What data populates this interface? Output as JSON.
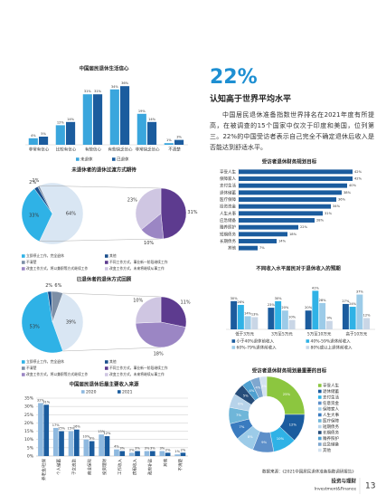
{
  "chart_data": [
    {
      "type": "bar",
      "title": "中国居民退休生活信心",
      "categories": [
        "非常有信心",
        "比较有信心",
        "有些信心",
        "有些缺乏信心",
        "非常缺乏信心",
        "不清楚"
      ],
      "series": [
        {
          "name": "未退休",
          "color": "#3aa6dd",
          "values": [
            4,
            12,
            31,
            34,
            19,
            1
          ],
          "value_labels": [
            "4%",
            "12%",
            "31%",
            "34%",
            "19%",
            "1%"
          ]
        },
        {
          "name": "已退休",
          "color": "#1b5c9e",
          "values": [
            5,
            14,
            31,
            36,
            14,
            3
          ],
          "value_labels": [
            "5%",
            "14%",
            "31%",
            "36%",
            "14%",
            "3%"
          ]
        }
      ],
      "ylim": [
        0,
        40
      ],
      "legend": "bottom"
    },
    {
      "type": "pie-of-pie",
      "title": "未退休者的退休过渡方式期待",
      "categories": [
        "立即停止工作，完全退休",
        "其他",
        "不清楚",
        null
      ],
      "values": [
        33,
        2,
        1,
        64
      ],
      "value_labels": [
        "33%",
        "2%",
        "1%",
        "64%"
      ],
      "colors": [
        "#2fb2e6",
        "#1b4f8c",
        "#7d8fa6",
        "#d9e6f3"
      ],
      "breakdown": {
        "categories": [
          "不同工作方式，事业新一阶段继续工作",
          "改变工作方式，将以兼职等方式继续工作",
          "改变工作方式，未来将继续从事工作"
        ],
        "values": [
          31,
          10,
          23
        ],
        "value_labels": [
          "31%",
          "10%",
          "23%"
        ],
        "colors": [
          "#5d3b8f",
          "#9b86c4",
          "#cfc6e2"
        ]
      },
      "legend": "bottom"
    },
    {
      "type": "pie-of-pie",
      "title": "已退休者的退休方式回顾",
      "categories": [
        "立即停止工作，完全退休",
        "其他",
        "不清楚",
        null
      ],
      "values": [
        53,
        2,
        6,
        39
      ],
      "value_labels": [
        "53%",
        "2%",
        "6%",
        "39%"
      ],
      "colors": [
        "#2fb2e6",
        "#1b4f8c",
        "#7d8fa6",
        "#d9e6f3"
      ],
      "breakdown": {
        "categories": [
          "不同工作方式，事业新一阶段继续工作",
          "改变工作方式，将以兼职等方式继续工作",
          "改变工作方式，未来将继续从事工作"
        ],
        "values": [
          11,
          18,
          10
        ],
        "value_labels": [
          "11%",
          "18%",
          "10%"
        ],
        "colors": [
          "#5d3b8f",
          "#9b86c4",
          "#cfc6e2"
        ]
      },
      "legend": "bottom"
    },
    {
      "type": "bar",
      "title": "中国居民退休后最主要收入来源",
      "categories": [
        "养老金/社保",
        "个人储蓄",
        "子女资助",
        "商业保险",
        "投资理财",
        "工作收入",
        "房租收入",
        "政府补贴",
        "其他",
        "不清楚"
      ],
      "series": [
        {
          "name": "2020",
          "color": "#8fb9df",
          "values": [
            32,
            17,
            15,
            10,
            13,
            4,
            2,
            3,
            3,
            1
          ],
          "value_labels": [
            "32%",
            "17%",
            "15%",
            "10%",
            "13%",
            "4%",
            "2%",
            "3%",
            "3%",
            "1%"
          ]
        },
        {
          "name": "2021",
          "color": "#1b5c9e",
          "values": [
            31,
            15,
            16,
            9,
            12,
            3,
            3,
            3,
            2,
            2
          ],
          "value_labels": [
            "31%",
            "15%",
            "16%",
            "9%",
            "12%",
            "3%",
            "3%",
            "3%",
            "2%",
            "2%"
          ]
        }
      ],
      "ylim": [
        0,
        35
      ],
      "yticks": [
        {
          "value": 0,
          "label": "0%"
        },
        {
          "value": 5,
          "label": "5%"
        },
        {
          "value": 10,
          "label": "10%"
        },
        {
          "value": 15,
          "label": "15%"
        },
        {
          "value": 20,
          "label": "20%"
        },
        {
          "value": 25,
          "label": "25%"
        },
        {
          "value": 30,
          "label": "30%"
        },
        {
          "value": 35,
          "label": "35%"
        }
      ],
      "grid": true,
      "legend": "top"
    },
    {
      "type": "hbar",
      "title": "受访者退休财务规划目标",
      "categories": [
        "享受人生",
        "保障家人",
        "支付生活",
        "退休储蓄",
        "医疗保障",
        "投资资金",
        "人生大事",
        "应急储备",
        "赡养照护",
        "短期债务",
        "长期债务",
        "其他"
      ],
      "values": [
        42,
        42,
        40,
        38,
        36,
        34,
        31,
        28,
        22,
        18,
        14,
        7
      ],
      "value_labels": [
        "42%",
        "42%",
        "40%",
        "38%",
        "36%",
        "34%",
        "31%",
        "28%",
        "22%",
        "18%",
        "14%",
        "7%"
      ],
      "color": "#1b5c9e",
      "xlim": [
        0,
        50
      ]
    },
    {
      "type": "bar",
      "title": "不同收入水平居民对于退休收入的预期",
      "categories": [
        "低于3万元",
        "3万至5万元",
        "5万至10万元",
        "高于10万元"
      ],
      "series": [
        {
          "name": "小于40%退休前收入",
          "color": "#1b5c9e",
          "values": [
            30,
            23,
            20,
            27
          ],
          "value_labels": [
            "30%",
            "23%",
            "20%",
            "27%"
          ]
        },
        {
          "name": "40%-59%退休前收入",
          "color": "#2fb2e6",
          "values": [
            26,
            30,
            41,
            24
          ],
          "value_labels": [
            "26%",
            "30%",
            "41%",
            "24%"
          ]
        },
        {
          "name": "60%-79%退休前收入",
          "color": "#9ccbe8",
          "values": [
            14,
            20,
            28,
            37
          ],
          "value_labels": [
            "14%",
            "20%",
            "28%",
            "37%"
          ]
        },
        {
          "name": "80%或以上退休前收入",
          "color": "#c9d6e6",
          "values": [
            13,
            10,
            9,
            12
          ],
          "value_labels": [
            "13%",
            "10%",
            "9%",
            "12%"
          ]
        }
      ],
      "ylim": [
        0,
        50
      ],
      "legend": "bottom"
    },
    {
      "type": "donut",
      "title": "受访者退休财务规划最重要的目标",
      "categories": [
        "享受人生",
        "退休储蓄",
        "支付生活",
        "任意资金",
        "保障家人",
        "人生大事",
        "医疗保障",
        "短期债务",
        "长期债务",
        "赡养照护",
        "应急储备",
        "其他"
      ],
      "values": [
        25,
        12,
        10,
        9,
        8,
        7,
        7,
        6,
        5,
        4,
        4,
        3
      ],
      "value_labels": [
        "25%",
        "12%",
        "10%",
        "9%",
        "8%",
        "7%",
        "7%",
        "6%",
        "5%",
        "4%",
        "4%",
        "3%"
      ],
      "colors": [
        "#8cc63f",
        "#1b5c9e",
        "#2fb2e6",
        "#5d8fc9",
        "#9ccbe8",
        "#3a7bbf",
        "#6fb6d9",
        "#b7d3ea",
        "#264d7a",
        "#4fa0d0",
        "#7fa7cf",
        "#d3e2f0"
      ],
      "legend": "right"
    }
  ],
  "article": {
    "stat": "22%",
    "heading": "认知高于世界平均水平",
    "body": "中国居民退休准备指数世界排名在2021年度有所提高，在被调查的15个国家中仅次于印度和美国，位列第三。22%的中国受访者表示自己完全不确定退休后收入是否能达到舒适水平。"
  },
  "footer": {
    "source": "数据来源：《2021中国居民退休准备指数调研报告》",
    "magazine": "投资与理财",
    "magazine_en": "Investment&Finance",
    "page": "13"
  }
}
